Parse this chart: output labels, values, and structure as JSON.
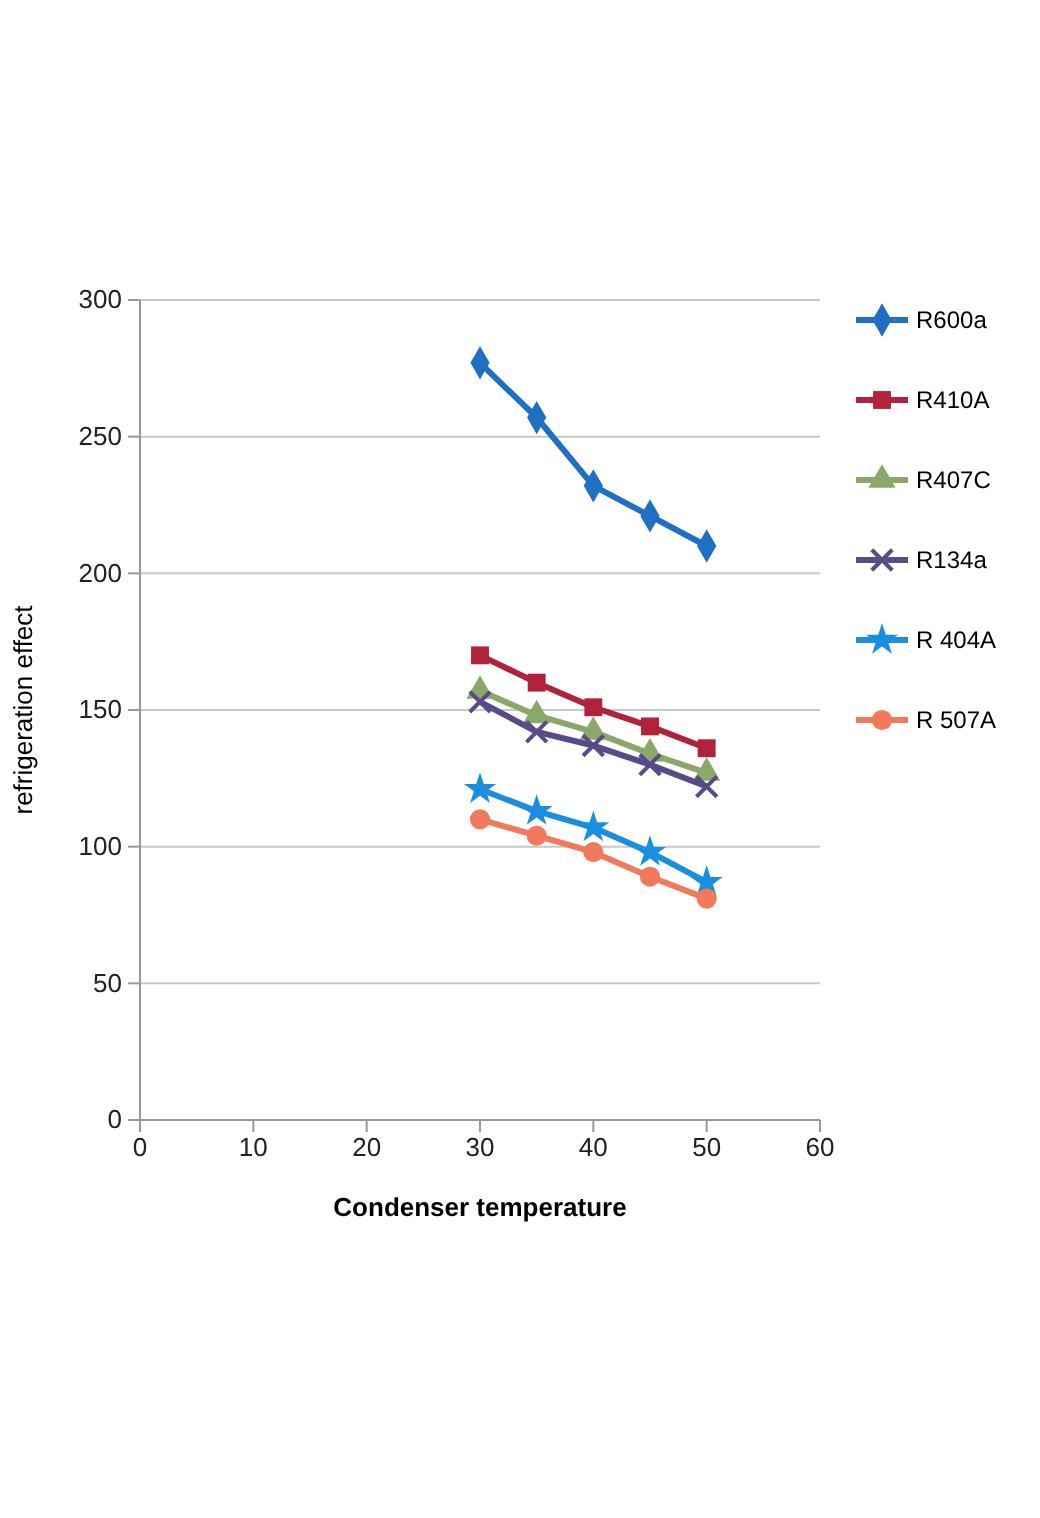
{
  "chart_data": {
    "type": "line",
    "xlabel": "Condenser temperature",
    "ylabel": "refrigeration effect",
    "x": [
      30,
      35,
      40,
      45,
      50
    ],
    "series": [
      {
        "name": "R600a",
        "color": "#1f6fc4",
        "marker": "diamond",
        "values": [
          277,
          257,
          232,
          221,
          210
        ]
      },
      {
        "name": "R410A",
        "color": "#b0233a",
        "marker": "square",
        "values": [
          170,
          160,
          151,
          144,
          136
        ]
      },
      {
        "name": "R407C",
        "color": "#8aa86a",
        "marker": "triangle",
        "values": [
          157,
          148,
          142,
          134,
          127
        ]
      },
      {
        "name": "R134a",
        "color": "#5a4a8a",
        "marker": "cross",
        "values": [
          153,
          142,
          137,
          130,
          122
        ]
      },
      {
        "name": "R 404A",
        "color": "#1a8ee0",
        "marker": "star",
        "values": [
          121,
          113,
          107,
          98,
          87
        ]
      },
      {
        "name": "R 507A",
        "color": "#f07a5a",
        "marker": "circle",
        "values": [
          110,
          104,
          98,
          89,
          81
        ]
      }
    ],
    "xlim": [
      0,
      60
    ],
    "xticks": [
      0,
      10,
      20,
      30,
      40,
      50,
      60
    ],
    "ylim": [
      0,
      300
    ],
    "yticks": [
      0,
      50,
      100,
      150,
      200,
      250,
      300
    ],
    "grid": "y",
    "legend": "right"
  }
}
